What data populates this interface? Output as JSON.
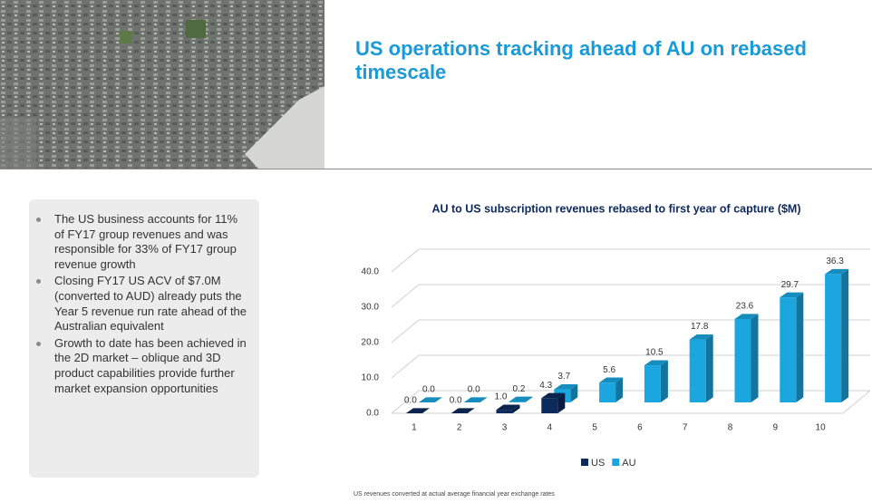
{
  "slide": {
    "title": "US operations tracking ahead of AU on rebased timescale",
    "bullets": [
      "The US business accounts for 11% of FY17 group revenues and was responsible for 33% of FY17 group revenue growth",
      "Closing FY17 US ACV of $7.0M (converted to AUD) already puts the Year 5 revenue run rate ahead of the Australian equivalent",
      "Growth to date has been achieved in the 2D market – oblique and 3D product capabilities provide further market expansion opportunities"
    ],
    "footnote": "US revenues converted at actual average financial year exchange rates"
  },
  "chart_data": {
    "type": "bar3d",
    "title": "AU to US subscription revenues rebased to first year of capture ($M)",
    "categories": [
      "1",
      "2",
      "3",
      "4",
      "5",
      "6",
      "7",
      "8",
      "9",
      "10"
    ],
    "series": [
      {
        "name": "US",
        "color": "#0d2a5c",
        "values": [
          0.0,
          0.0,
          1.0,
          4.3,
          null,
          null,
          null,
          null,
          null,
          null
        ],
        "value_labels": [
          "0.0",
          "0.0",
          "1.0",
          "4.3",
          null,
          null,
          null,
          null,
          null,
          null
        ]
      },
      {
        "name": "AU",
        "color": "#1ba6e0",
        "values": [
          0.0,
          0.0,
          0.2,
          3.7,
          5.6,
          10.5,
          17.8,
          23.6,
          29.7,
          36.3
        ],
        "value_labels": [
          "0.0",
          "0.0",
          "0.2",
          "3.7",
          "5.6",
          "10.5",
          "17.8",
          "23.6",
          "29.7",
          "36.3"
        ]
      }
    ],
    "ylim": [
      0,
      40
    ],
    "yticks": [
      {
        "value": 0,
        "label": "0.0"
      },
      {
        "value": 10,
        "label": "10.0"
      },
      {
        "value": 20,
        "label": "20.0"
      },
      {
        "value": 30,
        "label": "30.0"
      },
      {
        "value": 40,
        "label": "40.0"
      }
    ],
    "grid": true,
    "legend": "bottom"
  }
}
